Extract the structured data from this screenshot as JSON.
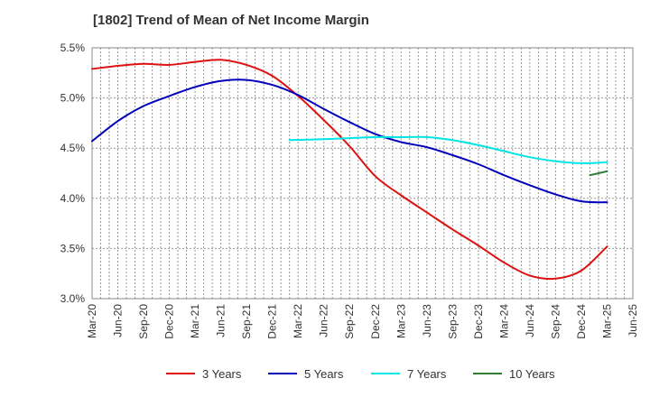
{
  "title": "[1802]  Trend of Mean of Net Income Margin",
  "chart_data": {
    "type": "line",
    "title": "[1802]  Trend of Mean of Net Income Margin",
    "xlabel": "",
    "ylabel": "",
    "ylim": [
      3.0,
      5.5
    ],
    "y_ticks": [
      "3.0%",
      "3.5%",
      "4.0%",
      "4.5%",
      "5.0%",
      "5.5%"
    ],
    "x_range": [
      "2020-03",
      "2025-06"
    ],
    "x_ticks": [
      "Mar-20",
      "Jun-20",
      "Sep-20",
      "Dec-20",
      "Mar-21",
      "Jun-21",
      "Sep-21",
      "Dec-21",
      "Mar-22",
      "Jun-22",
      "Sep-22",
      "Dec-22",
      "Mar-23",
      "Jun-23",
      "Sep-23",
      "Dec-23",
      "Mar-24",
      "Jun-24",
      "Sep-24",
      "Dec-24",
      "Mar-25",
      "Jun-25"
    ],
    "grid": "vertical dotted lines, monthly",
    "legend_position": "bottom",
    "series": [
      {
        "name": "3 Years",
        "color": "#dd1111",
        "points": [
          [
            "2020-03",
            5.29
          ],
          [
            "2020-06",
            5.32
          ],
          [
            "2020-09",
            5.34
          ],
          [
            "2020-12",
            5.33
          ],
          [
            "2021-03",
            5.36
          ],
          [
            "2021-06",
            5.38
          ],
          [
            "2021-09",
            5.33
          ],
          [
            "2021-12",
            5.22
          ],
          [
            "2022-03",
            5.02
          ],
          [
            "2022-06",
            4.78
          ],
          [
            "2022-09",
            4.52
          ],
          [
            "2022-12",
            4.22
          ],
          [
            "2023-03",
            4.03
          ],
          [
            "2023-06",
            3.86
          ],
          [
            "2023-09",
            3.69
          ],
          [
            "2023-12",
            3.53
          ],
          [
            "2024-03",
            3.36
          ],
          [
            "2024-06",
            3.23
          ],
          [
            "2024-09",
            3.2
          ],
          [
            "2024-12",
            3.28
          ],
          [
            "2025-03",
            3.52
          ]
        ]
      },
      {
        "name": "5 Years",
        "color": "#0000bb",
        "points": [
          [
            "2020-03",
            4.57
          ],
          [
            "2020-06",
            4.77
          ],
          [
            "2020-09",
            4.92
          ],
          [
            "2020-12",
            5.02
          ],
          [
            "2021-03",
            5.11
          ],
          [
            "2021-06",
            5.17
          ],
          [
            "2021-09",
            5.18
          ],
          [
            "2021-12",
            5.13
          ],
          [
            "2022-03",
            5.03
          ],
          [
            "2022-06",
            4.89
          ],
          [
            "2022-09",
            4.76
          ],
          [
            "2022-12",
            4.64
          ],
          [
            "2023-03",
            4.56
          ],
          [
            "2023-06",
            4.51
          ],
          [
            "2023-09",
            4.43
          ],
          [
            "2023-12",
            4.34
          ],
          [
            "2024-03",
            4.23
          ],
          [
            "2024-06",
            4.13
          ],
          [
            "2024-09",
            4.04
          ],
          [
            "2024-12",
            3.97
          ],
          [
            "2025-03",
            3.96
          ]
        ]
      },
      {
        "name": "7 Years",
        "color": "#00e5e5",
        "points": [
          [
            "2022-02",
            4.58
          ],
          [
            "2022-06",
            4.59
          ],
          [
            "2022-09",
            4.6
          ],
          [
            "2022-12",
            4.61
          ],
          [
            "2023-03",
            4.61
          ],
          [
            "2023-06",
            4.61
          ],
          [
            "2023-09",
            4.58
          ],
          [
            "2023-12",
            4.53
          ],
          [
            "2024-03",
            4.47
          ],
          [
            "2024-06",
            4.41
          ],
          [
            "2024-09",
            4.37
          ],
          [
            "2024-12",
            4.35
          ],
          [
            "2025-03",
            4.36
          ]
        ]
      },
      {
        "name": "10 Years",
        "color": "#2e7d32",
        "points": [
          [
            "2025-01",
            4.23
          ],
          [
            "2025-03",
            4.27
          ]
        ]
      }
    ]
  }
}
